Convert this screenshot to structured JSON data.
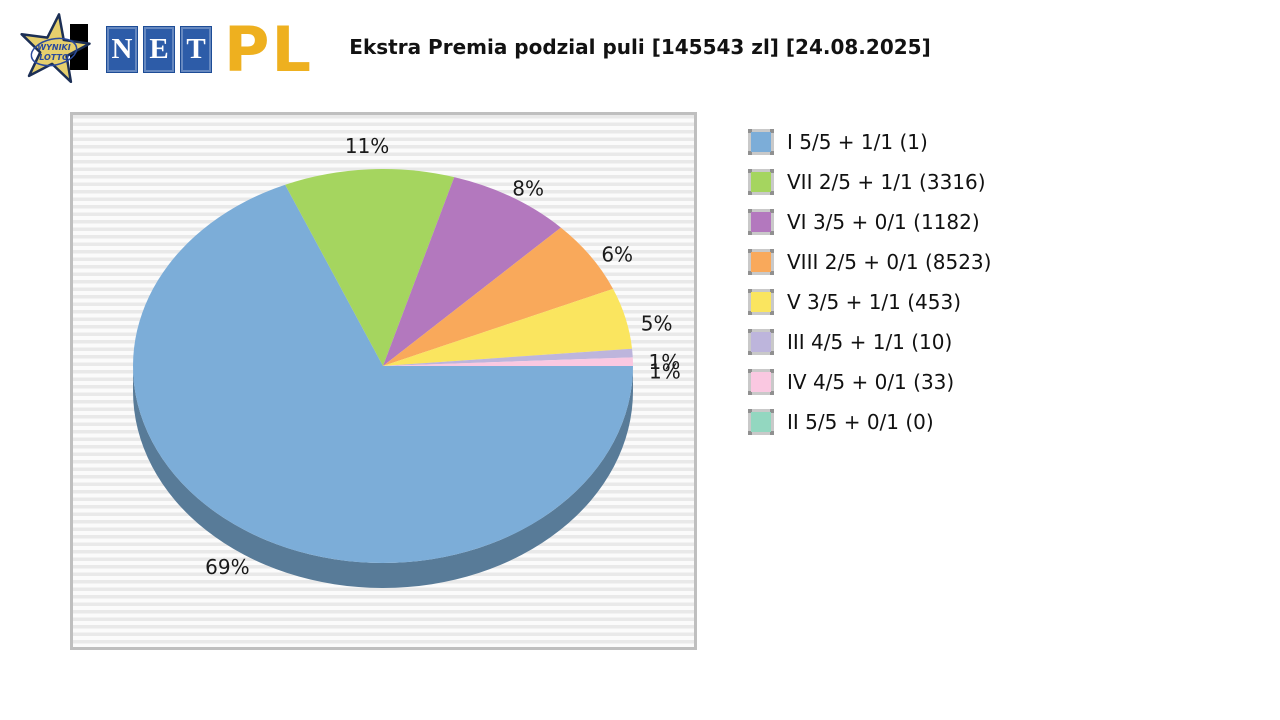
{
  "logo": {
    "star_text_line1": "WYNIKI",
    "star_text_line2": "LOTTO",
    "tiles": [
      "N",
      "E",
      "T"
    ],
    "suffix": "PL",
    "colors": {
      "star_fill": "#e6cf6d",
      "star_outline": "#1c2f55",
      "star_text": "#2b4a9b",
      "tile_bg": "#2d5ca8",
      "suffix_gold": "#eeb01f"
    }
  },
  "chart_data": {
    "type": "pie",
    "style": "3d",
    "title": "Ekstra Premia podzial puli [145543 zl] [24.08.2025]",
    "legend_position": "right",
    "start_angle_deg": 0,
    "direction": "clockwise",
    "rim_color": "#587b98",
    "slices": [
      {
        "legend": "I 5/5 + 1/1 (1)",
        "percent_label": "69%",
        "value": 68.6,
        "color": "#7cadd8"
      },
      {
        "legend": "VII 2/5 + 1/1 (3316)",
        "percent_label": "11%",
        "value": 11,
        "color": "#a5d55f"
      },
      {
        "legend": "VI 3/5 + 0/1 (1182)",
        "percent_label": "8%",
        "value": 8,
        "color": "#b378be"
      },
      {
        "legend": "VIII 2/5 + 0/1 (8523)",
        "percent_label": "6%",
        "value": 6,
        "color": "#f9a95b"
      },
      {
        "legend": "V 3/5 + 1/1 (453)",
        "percent_label": "5%",
        "value": 5,
        "color": "#fae55f"
      },
      {
        "legend": "III 4/5 + 1/1 (10)",
        "percent_label": "1%",
        "value": 0.7,
        "color": "#bdb5dc"
      },
      {
        "legend": "IV 4/5 + 0/1 (33)",
        "percent_label": "1%",
        "value": 0.7,
        "color": "#fac8e1"
      },
      {
        "legend": "II 5/5 + 0/1 (0)",
        "percent_label": "",
        "value": 0,
        "color": "#93d7c0"
      }
    ]
  }
}
